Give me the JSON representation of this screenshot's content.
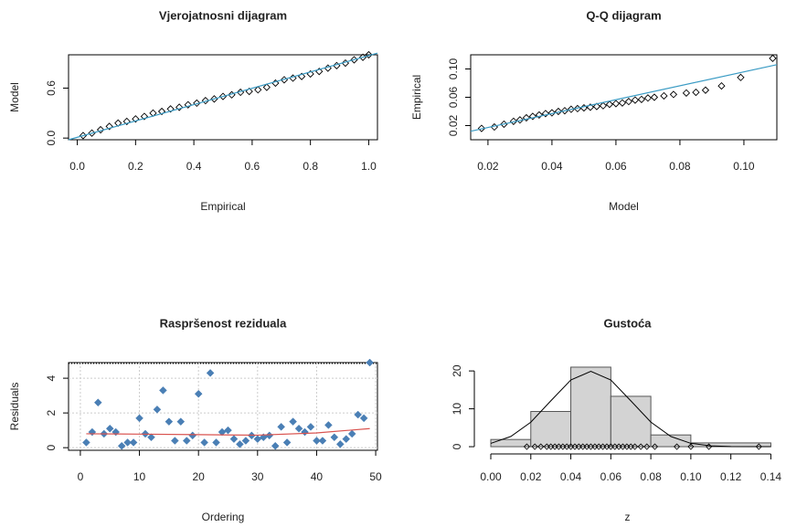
{
  "chart_data": [
    {
      "type": "scatter",
      "title": "Vjerojatnosni dijagram",
      "x_label": "Empirical",
      "y_label": "Model",
      "xlim": [
        -0.03,
        1.03
      ],
      "ylim": [
        -0.02,
        1.0
      ],
      "xticks": [
        {
          "value": 0,
          "label": "0.0"
        },
        0.2,
        0.4,
        0.6,
        0.8,
        {
          "value": 1,
          "label": "1.0"
        }
      ],
      "yticks": [
        {
          "value": 0,
          "label": "0.0"
        },
        0.6
      ],
      "grid": false,
      "series": [
        {
          "color": "#000000",
          "marker": "open",
          "x": [
            0.02,
            0.05,
            0.08,
            0.11,
            0.14,
            0.17,
            0.2,
            0.23,
            0.26,
            0.29,
            0.32,
            0.35,
            0.38,
            0.41,
            0.44,
            0.47,
            0.5,
            0.53,
            0.56,
            0.59,
            0.62,
            0.65,
            0.68,
            0.71,
            0.74,
            0.77,
            0.8,
            0.83,
            0.86,
            0.89,
            0.92,
            0.95,
            0.98,
            1.0
          ],
          "values": [
            0.03,
            0.06,
            0.1,
            0.14,
            0.18,
            0.2,
            0.23,
            0.26,
            0.3,
            0.32,
            0.35,
            0.37,
            0.4,
            0.42,
            0.45,
            0.47,
            0.5,
            0.52,
            0.55,
            0.56,
            0.58,
            0.61,
            0.66,
            0.7,
            0.72,
            0.74,
            0.77,
            0.8,
            0.84,
            0.87,
            0.9,
            0.94,
            0.97,
            1.0
          ]
        },
        {
          "color": "#3a9bc4",
          "marker": "line",
          "x": [
            -0.03,
            1.03
          ],
          "values": [
            -0.02,
            1.02
          ]
        }
      ]
    },
    {
      "type": "scatter",
      "title": "Q-Q dijagram",
      "x_label": "Model",
      "y_label": "Empirical",
      "xlim": [
        0.0146,
        0.1103
      ],
      "ylim": [
        0,
        0.12
      ],
      "xticks": [
        0.02,
        0.04,
        0.06,
        0.08,
        {
          "value": 0.1,
          "label": "0.10"
        }
      ],
      "yticks": [
        0.02,
        0.06,
        {
          "value": 0.1,
          "label": "0.10"
        }
      ],
      "grid": false,
      "series": [
        {
          "color": "#000000",
          "marker": "open",
          "x": [
            0.018,
            0.022,
            0.025,
            0.028,
            0.03,
            0.032,
            0.034,
            0.036,
            0.038,
            0.04,
            0.042,
            0.044,
            0.046,
            0.048,
            0.05,
            0.052,
            0.054,
            0.056,
            0.058,
            0.06,
            0.062,
            0.064,
            0.066,
            0.068,
            0.07,
            0.072,
            0.075,
            0.078,
            0.082,
            0.085,
            0.088,
            0.093,
            0.099,
            0.109
          ],
          "values": [
            0.016,
            0.018,
            0.022,
            0.026,
            0.028,
            0.031,
            0.033,
            0.035,
            0.037,
            0.038,
            0.04,
            0.041,
            0.043,
            0.044,
            0.045,
            0.046,
            0.047,
            0.048,
            0.05,
            0.051,
            0.052,
            0.054,
            0.056,
            0.057,
            0.059,
            0.06,
            0.062,
            0.064,
            0.066,
            0.067,
            0.07,
            0.076,
            0.088,
            0.115
          ]
        },
        {
          "color": "#3a9bc4",
          "marker": "line",
          "x": [
            0.0146,
            0.1103
          ],
          "values": [
            0.012,
            0.106
          ]
        }
      ]
    },
    {
      "type": "scatter",
      "title": "Raspršenost reziduala",
      "x_label": "Ordering",
      "y_label": "Residuals",
      "xlim": [
        -2,
        50.3
      ],
      "ylim": [
        -0.15,
        4.9
      ],
      "xticks": [
        0,
        10,
        20,
        30,
        40,
        50
      ],
      "yticks": [
        0,
        2,
        4
      ],
      "grid": true,
      "series": [
        {
          "color": "#4a7fb5",
          "marker": "filled",
          "x": [
            1,
            2,
            3,
            4,
            5,
            6,
            7,
            8,
            9,
            10,
            11,
            12,
            13,
            14,
            15,
            16,
            17,
            18,
            19,
            20,
            21,
            22,
            23,
            24,
            25,
            26,
            27,
            28,
            29,
            30,
            31,
            32,
            33,
            34,
            35,
            36,
            37,
            38,
            39,
            40,
            41,
            42,
            43,
            44,
            45,
            46,
            47,
            48,
            49
          ],
          "values": [
            0.3,
            0.9,
            2.6,
            0.8,
            1.1,
            0.9,
            0.1,
            0.3,
            0.3,
            1.7,
            0.8,
            0.6,
            2.2,
            3.3,
            1.5,
            0.4,
            1.5,
            0.4,
            0.7,
            3.1,
            0.3,
            4.3,
            0.3,
            0.9,
            1.0,
            0.5,
            0.2,
            0.4,
            0.7,
            0.5,
            0.6,
            0.7,
            0.1,
            1.2,
            0.3,
            1.5,
            1.1,
            0.9,
            1.2,
            0.4,
            0.4,
            1.3,
            0.6,
            0.2,
            0.5,
            0.8,
            1.9,
            1.7,
            4.9
          ]
        },
        {
          "color": "#d9534f",
          "marker": "line",
          "x": [
            1,
            10,
            20,
            30,
            40,
            49
          ],
          "values": [
            0.8,
            0.78,
            0.75,
            0.72,
            0.85,
            1.1
          ]
        }
      ]
    },
    {
      "type": "histogram",
      "title": "Gustoća",
      "x_label": "z",
      "xlim": [
        -0.0064,
        0.143
      ],
      "ylim": [
        -0.95,
        22.2
      ],
      "xticks": [
        {
          "value": 0,
          "label": "0.00"
        },
        0.02,
        0.04,
        0.06,
        0.08,
        {
          "value": 0.1,
          "label": "0.10"
        },
        0.12,
        0.14
      ],
      "yticks": [
        0,
        10,
        20
      ],
      "bins": [
        0,
        0.02,
        0.04,
        0.06,
        0.08,
        0.1,
        0.14
      ],
      "counts": [
        1.9,
        9.3,
        21,
        13.3,
        3.1,
        1.0
      ],
      "color": "#d3d3d3",
      "density": {
        "x": [
          0,
          0.01,
          0.02,
          0.03,
          0.04,
          0.05,
          0.06,
          0.07,
          0.08,
          0.09,
          0.1,
          0.11,
          0.12,
          0.13,
          0.14
        ],
        "values": [
          0.88,
          2.7,
          6.47,
          12.1,
          17.6,
          19.9,
          17.6,
          12.1,
          6.5,
          2.7,
          0.88,
          0.22,
          0.04,
          0,
          0
        ]
      },
      "rug": [
        0.018,
        0.022,
        0.025,
        0.028,
        0.03,
        0.032,
        0.034,
        0.036,
        0.038,
        0.04,
        0.042,
        0.044,
        0.046,
        0.048,
        0.05,
        0.052,
        0.054,
        0.056,
        0.058,
        0.06,
        0.062,
        0.064,
        0.066,
        0.068,
        0.07,
        0.072,
        0.075,
        0.078,
        0.082,
        0.093,
        0.1,
        0.109,
        0.134
      ]
    }
  ]
}
